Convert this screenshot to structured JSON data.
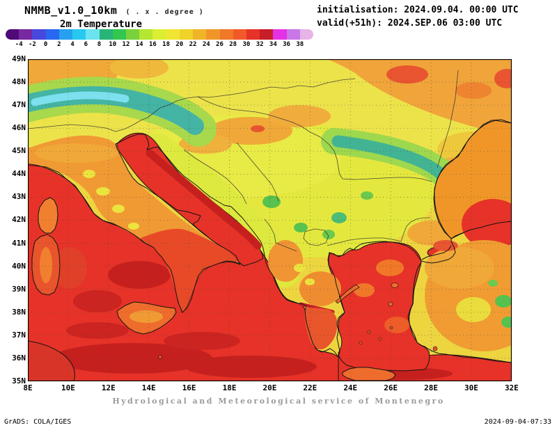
{
  "header": {
    "model": "NMMB_v1.0_10km",
    "model_suffix": "( . x . degree )",
    "variable": "2m Temperature",
    "init_line": "initialisation: 2024.09.04. 00:00 UTC",
    "valid_line": "valid(+51h): 2024.SEP.06 03:00 UTC"
  },
  "colorbar": {
    "tick_labels": [
      "-4",
      "-2",
      "0",
      "2",
      "4",
      "6",
      "8",
      "10",
      "12",
      "14",
      "16",
      "18",
      "20",
      "22",
      "24",
      "26",
      "28",
      "30",
      "32",
      "34",
      "36",
      "38"
    ],
    "colors": [
      "#500a78",
      "#7828a0",
      "#4848dc",
      "#2868f0",
      "#28a0f0",
      "#28c8f0",
      "#6ce4f0",
      "#28b478",
      "#32c850",
      "#78d23c",
      "#b4e632",
      "#dcee32",
      "#f0e632",
      "#f0d228",
      "#f0b428",
      "#f09628",
      "#f07828",
      "#f05a28",
      "#e63228",
      "#c81e28",
      "#e632e6",
      "#c878e6",
      "#e6b4e6"
    ]
  },
  "map": {
    "y_ticks": [
      "49N",
      "48N",
      "47N",
      "46N",
      "45N",
      "44N",
      "43N",
      "42N",
      "41N",
      "40N",
      "39N",
      "38N",
      "37N",
      "36N",
      "35N"
    ],
    "x_ticks": [
      "8E",
      "10E",
      "12E",
      "14E",
      "16E",
      "18E",
      "20E",
      "22E",
      "24E",
      "26E",
      "28E",
      "30E",
      "32E"
    ]
  },
  "footer": {
    "service": "Hydrological and Meteorological service of Montenegro",
    "grads": "GrADS: COLA/IGES",
    "timestamp": "2024-09-04-07:33"
  }
}
